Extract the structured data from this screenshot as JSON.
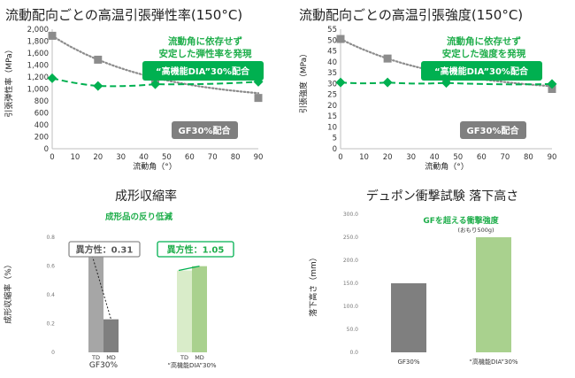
{
  "colors": {
    "green": "#00b050",
    "green_dark": "#1fae4b",
    "gray_marker": "#8c8c8c",
    "gray_box": "#7f7f7f",
    "bar_gray": "#a6a6a6",
    "bar_gray_dark": "#7f7f7f",
    "bar_green_light": "#d9ecc9",
    "bar_green": "#a9d18e"
  },
  "chart_data": [
    {
      "type": "scatter",
      "title": "流動配向ごとの高温引張弾性率(150°C)",
      "xlabel": "流動角（°）",
      "ylabel": "引張弾性率（MPa）",
      "xlim": [
        0,
        90
      ],
      "ylim": [
        0,
        2000
      ],
      "xticks": [
        "0",
        "10",
        "20",
        "30",
        "40",
        "50",
        "60",
        "70",
        "80",
        "90"
      ],
      "yticks": [
        "0",
        "200",
        "400",
        "600",
        "800",
        "1,000",
        "1,200",
        "1,400",
        "1,600",
        "1,800",
        "2,000"
      ],
      "series": [
        {
          "name": "GF30%配合",
          "x": [
            0,
            20,
            45,
            90
          ],
          "y": [
            1890,
            1490,
            1140,
            850
          ],
          "marker": "square",
          "color": "#8c8c8c",
          "trend": "dotted"
        },
        {
          "name": "“高機能DIA”30%配合",
          "x": [
            0,
            20,
            45,
            90
          ],
          "y": [
            1180,
            1050,
            1080,
            1120
          ],
          "marker": "diamond",
          "color": "#00b050",
          "trend": "dashed"
        }
      ],
      "annotations": [
        "流動角に依存せず",
        "安定した弾性率を発現"
      ]
    },
    {
      "type": "scatter",
      "title": "流動配向ごとの高温引張強度(150°C)",
      "xlabel": "流動角（°）",
      "ylabel": "引張強度（MPa）",
      "xlim": [
        0,
        90
      ],
      "ylim": [
        0,
        55
      ],
      "xticks": [
        "0",
        "10",
        "20",
        "30",
        "40",
        "50",
        "60",
        "70",
        "80",
        "90"
      ],
      "yticks": [
        "0",
        "5",
        "10",
        "15",
        "20",
        "25",
        "30",
        "35",
        "40",
        "45",
        "50",
        "55"
      ],
      "series": [
        {
          "name": "GF30%配合",
          "x": [
            0,
            20,
            45,
            90
          ],
          "y": [
            50.5,
            41.5,
            32.5,
            27.5
          ],
          "marker": "square",
          "color": "#8c8c8c",
          "trend": "dotted"
        },
        {
          "name": "“高機能DIA”30%配合",
          "x": [
            0,
            20,
            45,
            90
          ],
          "y": [
            30.5,
            30.5,
            30.3,
            29.8
          ],
          "marker": "diamond",
          "color": "#00b050",
          "trend": "dashed"
        }
      ],
      "annotations": [
        "流動角に依存せず",
        "安定した強度を発現"
      ]
    },
    {
      "type": "bar",
      "title": "成形収縮率",
      "subtitle": "成形品の反り低減",
      "ylabel": "成形収縮率（%）",
      "ylim": [
        0,
        0.9
      ],
      "yticks": [
        "0",
        "0.2",
        "0.4",
        "0.6",
        "0.8"
      ],
      "groups": [
        {
          "name": "GF30%",
          "categories": [
            "TD",
            "MD"
          ],
          "values": [
            0.72,
            0.23
          ],
          "anisotropy": "異方性：0.31"
        },
        {
          "name": "“高機能DIA”30%",
          "categories": [
            "TD",
            "MD"
          ],
          "values": [
            0.57,
            0.6
          ],
          "anisotropy": "異方性：1.05"
        }
      ]
    },
    {
      "type": "bar",
      "title": "デュポン衝撃試験 落下高さ",
      "ylabel": "落下高さ（mm）",
      "ylim": [
        0,
        300
      ],
      "yticks": [
        "0.0",
        "50.0",
        "100.0",
        "150.0",
        "200.0",
        "250.0",
        "300.0"
      ],
      "categories": [
        "GF30%",
        "“高機能DIA”30%"
      ],
      "values": [
        150,
        250
      ],
      "annotations": [
        "GFを超える衝撃強度",
        "(おもり500g)"
      ]
    }
  ]
}
